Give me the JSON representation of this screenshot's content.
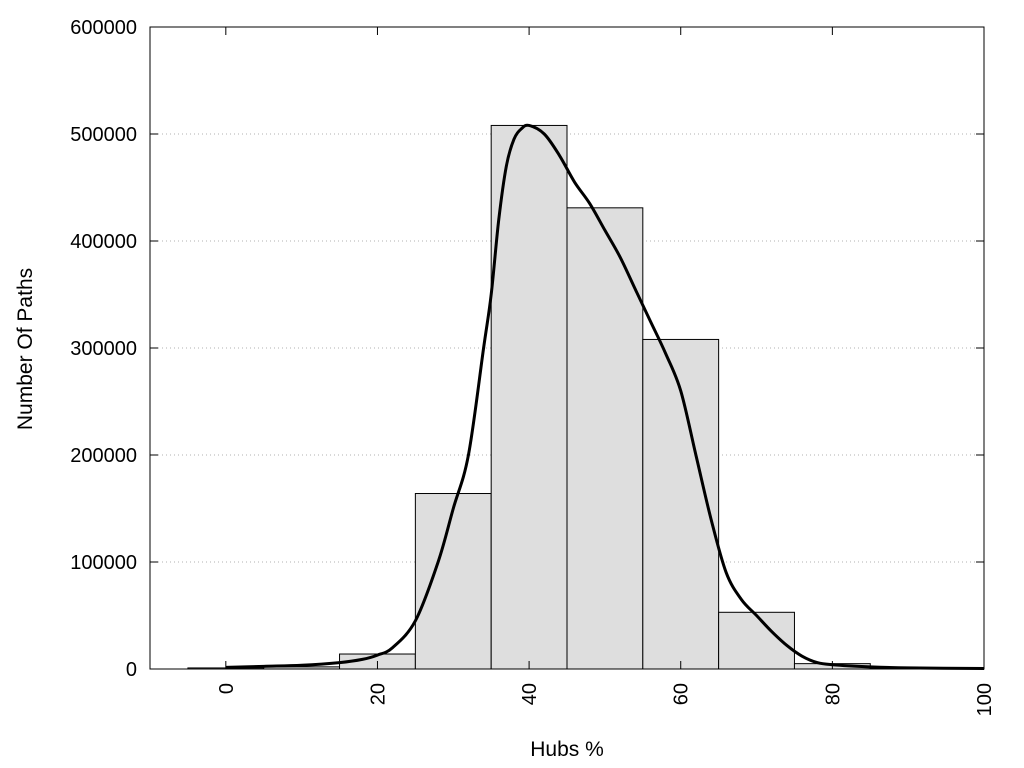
{
  "chart_data": {
    "type": "bar",
    "title": "",
    "xlabel": "Hubs %",
    "ylabel": "Number Of Paths",
    "xlim": [
      -10,
      100
    ],
    "ylim": [
      0,
      600000
    ],
    "x_ticks": [
      0,
      20,
      40,
      60,
      80,
      100
    ],
    "y_ticks": [
      0,
      100000,
      200000,
      300000,
      400000,
      500000,
      600000
    ],
    "grid": "horizontal-dotted",
    "bar_width": 10,
    "bar_color": "#dedede",
    "bar_edge_color": "#000000",
    "curve_color": "#000000",
    "bars": [
      {
        "x": 0,
        "value": 1000
      },
      {
        "x": 10,
        "value": 2000
      },
      {
        "x": 20,
        "value": 14000
      },
      {
        "x": 30,
        "value": 164000
      },
      {
        "x": 40,
        "value": 508000
      },
      {
        "x": 50,
        "value": 431000
      },
      {
        "x": 60,
        "value": 308000
      },
      {
        "x": 70,
        "value": 53000
      },
      {
        "x": 80,
        "value": 5000
      },
      {
        "x": 90,
        "value": 500
      }
    ],
    "curve": {
      "name": "",
      "points": [
        [
          0,
          1500
        ],
        [
          5,
          2500
        ],
        [
          10,
          3500
        ],
        [
          15,
          6000
        ],
        [
          18,
          9000
        ],
        [
          20,
          13000
        ],
        [
          22,
          20000
        ],
        [
          25,
          45000
        ],
        [
          28,
          100000
        ],
        [
          30,
          150000
        ],
        [
          32,
          200000
        ],
        [
          34,
          300000
        ],
        [
          35,
          350000
        ],
        [
          36,
          420000
        ],
        [
          37,
          470000
        ],
        [
          38,
          495000
        ],
        [
          39,
          505000
        ],
        [
          40,
          508000
        ],
        [
          42,
          500000
        ],
        [
          44,
          480000
        ],
        [
          46,
          455000
        ],
        [
          48,
          435000
        ],
        [
          50,
          410000
        ],
        [
          52,
          385000
        ],
        [
          54,
          355000
        ],
        [
          56,
          325000
        ],
        [
          58,
          295000
        ],
        [
          60,
          260000
        ],
        [
          62,
          200000
        ],
        [
          64,
          140000
        ],
        [
          66,
          90000
        ],
        [
          68,
          65000
        ],
        [
          70,
          50000
        ],
        [
          72,
          35000
        ],
        [
          74,
          22000
        ],
        [
          76,
          12000
        ],
        [
          78,
          6000
        ],
        [
          80,
          4000
        ],
        [
          85,
          2000
        ],
        [
          90,
          1000
        ],
        [
          100,
          500
        ]
      ]
    }
  }
}
